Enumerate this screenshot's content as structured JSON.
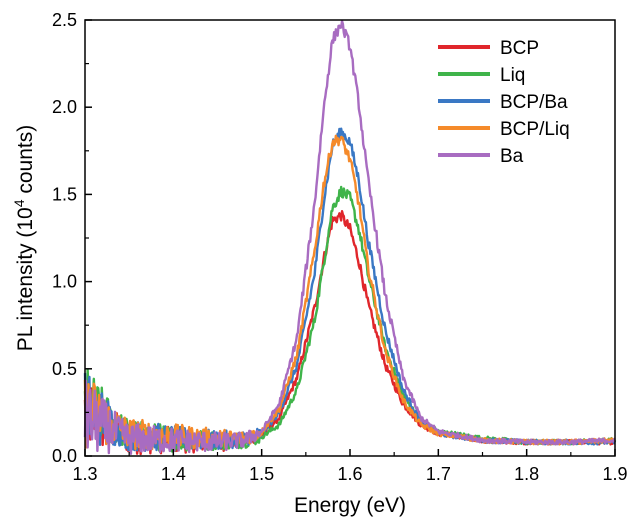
{
  "chart_data": {
    "type": "line",
    "title": "",
    "xlabel": "Energy (eV)",
    "ylabel_prefix": "PL intensity (10",
    "ylabel_sup": "4",
    "ylabel_suffix": " counts)",
    "xlim": [
      1.3,
      1.9
    ],
    "ylim": [
      0.0,
      2.5
    ],
    "xticks": [
      "1.3",
      "1.4",
      "1.5",
      "1.6",
      "1.7",
      "1.8",
      "1.9"
    ],
    "yticks": [
      "0.0",
      "0.5",
      "1.0",
      "1.5",
      "2.0",
      "2.5"
    ],
    "grid": false,
    "legend_position": "top-right",
    "line_shape": "noisy photoluminescence spectra",
    "series": [
      {
        "name": "BCP",
        "color": "#e0262b",
        "x": [
          1.3,
          1.35,
          1.4,
          1.45,
          1.48,
          1.5,
          1.52,
          1.54,
          1.56,
          1.57,
          1.58,
          1.59,
          1.6,
          1.61,
          1.62,
          1.64,
          1.66,
          1.68,
          1.7,
          1.75,
          1.8,
          1.85,
          1.9
        ],
        "values": [
          0.25,
          0.1,
          0.09,
          0.08,
          0.09,
          0.12,
          0.22,
          0.45,
          0.85,
          1.12,
          1.35,
          1.38,
          1.3,
          1.12,
          0.88,
          0.52,
          0.3,
          0.18,
          0.13,
          0.09,
          0.08,
          0.08,
          0.08
        ]
      },
      {
        "name": "Liq",
        "color": "#3fb44a",
        "x": [
          1.3,
          1.35,
          1.4,
          1.45,
          1.48,
          1.5,
          1.52,
          1.54,
          1.56,
          1.57,
          1.58,
          1.59,
          1.6,
          1.61,
          1.62,
          1.64,
          1.66,
          1.68,
          1.7,
          1.75,
          1.8,
          1.85,
          1.9
        ],
        "values": [
          0.3,
          0.12,
          0.1,
          0.09,
          0.09,
          0.11,
          0.18,
          0.38,
          0.78,
          1.1,
          1.42,
          1.52,
          1.48,
          1.3,
          1.05,
          0.62,
          0.35,
          0.2,
          0.14,
          0.1,
          0.08,
          0.08,
          0.09
        ]
      },
      {
        "name": "BCP/Ba",
        "color": "#3a78c4",
        "x": [
          1.3,
          1.35,
          1.4,
          1.45,
          1.48,
          1.5,
          1.52,
          1.54,
          1.56,
          1.57,
          1.58,
          1.59,
          1.6,
          1.61,
          1.62,
          1.64,
          1.66,
          1.68,
          1.7,
          1.75,
          1.8,
          1.85,
          1.9
        ],
        "values": [
          0.28,
          0.12,
          0.1,
          0.09,
          0.1,
          0.13,
          0.25,
          0.52,
          1.05,
          1.45,
          1.78,
          1.86,
          1.8,
          1.58,
          1.25,
          0.72,
          0.38,
          0.2,
          0.13,
          0.09,
          0.08,
          0.08,
          0.08
        ]
      },
      {
        "name": "BCP/Liq",
        "color": "#f58a2a",
        "x": [
          1.3,
          1.35,
          1.4,
          1.45,
          1.48,
          1.5,
          1.52,
          1.54,
          1.56,
          1.57,
          1.58,
          1.59,
          1.6,
          1.61,
          1.62,
          1.64,
          1.66,
          1.68,
          1.7,
          1.75,
          1.8,
          1.85,
          1.9
        ],
        "values": [
          0.27,
          0.13,
          0.11,
          0.1,
          0.1,
          0.14,
          0.27,
          0.58,
          1.18,
          1.55,
          1.8,
          1.82,
          1.7,
          1.45,
          1.1,
          0.6,
          0.32,
          0.18,
          0.13,
          0.09,
          0.08,
          0.08,
          0.09
        ]
      },
      {
        "name": "Ba",
        "color": "#a86cc1",
        "x": [
          1.3,
          1.35,
          1.4,
          1.45,
          1.48,
          1.5,
          1.52,
          1.54,
          1.56,
          1.57,
          1.58,
          1.59,
          1.6,
          1.61,
          1.62,
          1.64,
          1.66,
          1.68,
          1.7,
          1.75,
          1.8,
          1.85,
          1.9
        ],
        "values": [
          0.22,
          0.1,
          0.09,
          0.08,
          0.09,
          0.14,
          0.3,
          0.68,
          1.45,
          1.98,
          2.38,
          2.48,
          2.35,
          2.02,
          1.6,
          0.92,
          0.45,
          0.22,
          0.14,
          0.09,
          0.08,
          0.08,
          0.09
        ]
      }
    ]
  }
}
